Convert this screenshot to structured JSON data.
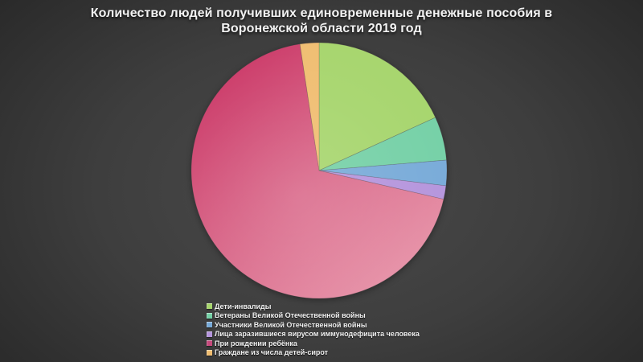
{
  "title": "Количество людей получивших единовременные денежные пособия в Воронежской области 2019 год",
  "chart_data": {
    "type": "pie",
    "title": "Количество людей получивших единовременные денежные пособия в Воронежской области 2019 год",
    "legend_position": "bottom-left",
    "start_angle_deg": 0,
    "direction": "clockwise",
    "slices": [
      {
        "label": "Дети-инвалиды",
        "percent": 18.2,
        "color": "#a6d56c"
      },
      {
        "label": "Ветераны Великой Отечественной войны",
        "percent": 5.5,
        "color": "#74d0a6"
      },
      {
        "label": "Участники Великой Отечественной войны",
        "percent": 3.2,
        "color": "#77aad8"
      },
      {
        "label": "Лица заразившиеся вирусом иммунодефицита человека",
        "percent": 1.7,
        "color": "#b494dc"
      },
      {
        "label": "При рождении ребёнка",
        "percent": 69.0,
        "color": "#c6497c",
        "gradient": [
          "#c6295c",
          "#e897ab"
        ]
      },
      {
        "label": "Граждане из числа детей-сирот",
        "percent": 2.4,
        "color": "#f0bd70"
      }
    ]
  }
}
